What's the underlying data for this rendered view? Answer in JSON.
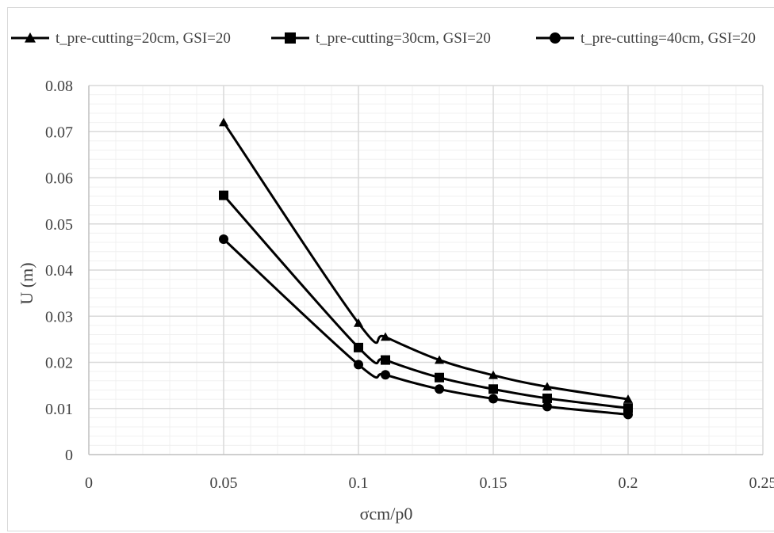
{
  "chart_data": {
    "type": "line",
    "xlabel": "σcm/p0",
    "ylabel": "U (m)",
    "xlim": [
      0,
      0.25
    ],
    "ylim": [
      0,
      0.08
    ],
    "x_ticks": [
      "0",
      "0.05",
      "0.1",
      "0.15",
      "0.2",
      "0.25"
    ],
    "y_ticks": [
      "0",
      "0.01",
      "0.02",
      "0.03",
      "0.04",
      "0.05",
      "0.06",
      "0.07",
      "0.08"
    ],
    "grid": true,
    "legend_position": "top",
    "line_color": "#000000",
    "series": [
      {
        "name": "t_pre-cutting=20cm, GSI=20",
        "marker": "triangle",
        "x": [
          0.05,
          0.1,
          0.11,
          0.13,
          0.15,
          0.17,
          0.2
        ],
        "y": [
          0.072,
          0.0285,
          0.0255,
          0.0205,
          0.0172,
          0.0147,
          0.012
        ]
      },
      {
        "name": "t_pre-cutting=30cm, GSI=20",
        "marker": "square",
        "x": [
          0.05,
          0.1,
          0.11,
          0.13,
          0.15,
          0.17,
          0.2
        ],
        "y": [
          0.0562,
          0.0232,
          0.0205,
          0.0167,
          0.0142,
          0.0122,
          0.0101
        ]
      },
      {
        "name": "t_pre-cutting=40cm, GSI=20",
        "marker": "circle",
        "x": [
          0.05,
          0.1,
          0.11,
          0.13,
          0.15,
          0.17,
          0.2
        ],
        "y": [
          0.0467,
          0.0195,
          0.0173,
          0.0142,
          0.0121,
          0.0104,
          0.0087
        ]
      }
    ]
  }
}
